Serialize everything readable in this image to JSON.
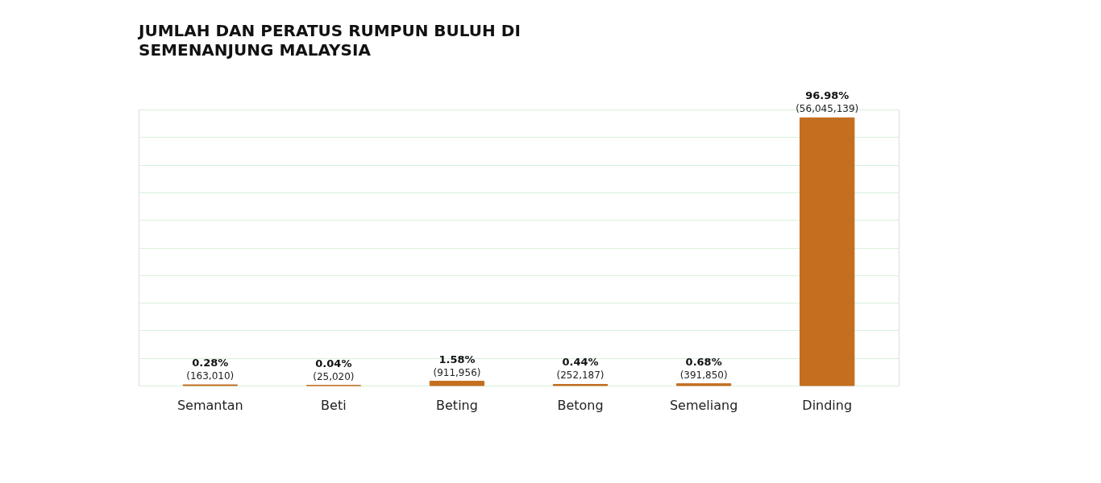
{
  "chart_data": {
    "type": "bar",
    "title": "JUMLAH DAN PERATUS RUMPUN BULUH DI SEMENANJUNG MALAYSIA",
    "categories": [
      "Semantan",
      "Beti",
      "Beting",
      "Betong",
      "Semeliang",
      "Dinding"
    ],
    "values": [
      0.28,
      0.04,
      1.58,
      0.44,
      0.68,
      96.98
    ],
    "value_labels": [
      "0.28%",
      "0.04%",
      "1.58%",
      "0.44%",
      "0.68%",
      "96.98%"
    ],
    "annotations": [
      {
        "text": "(163,010)",
        "x": "Semantan",
        "y": 0.28
      },
      {
        "text": "(25,020)",
        "x": "Beti",
        "y": 0.04
      },
      {
        "text": "(911,956)",
        "x": "Beting",
        "y": 1.58
      },
      {
        "text": "(252,187)",
        "x": "Betong",
        "y": 0.44
      },
      {
        "text": "(391,850)",
        "x": "Semeliang",
        "y": 0.68
      },
      {
        "text": "(56,045,139)",
        "x": "Dinding",
        "y": 96.98
      }
    ],
    "color": "#c46e20",
    "ylim": [
      0,
      100
    ],
    "grid": "y",
    "tick_labels": "x"
  }
}
